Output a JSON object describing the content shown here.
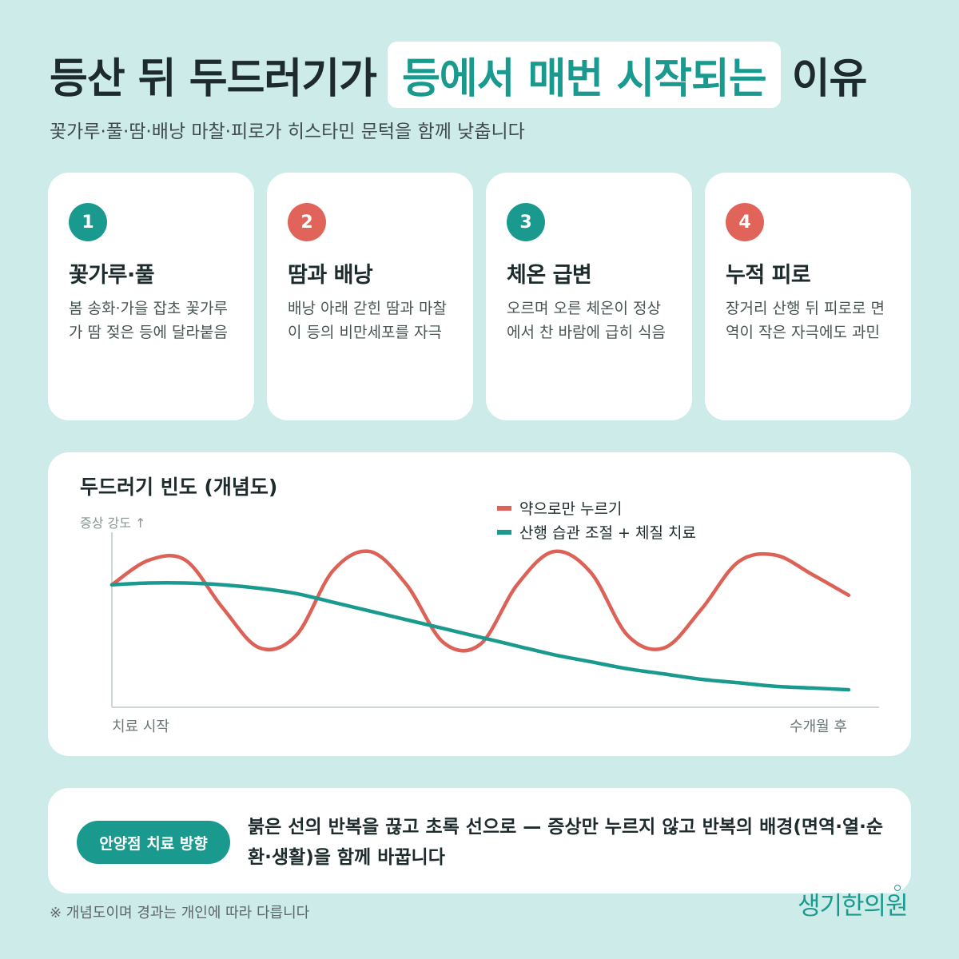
{
  "header": {
    "title_pre": "등산 뒤 두드러기가",
    "title_highlight": "등에서 매번 시작되는",
    "title_post": "이유",
    "subtitle": "꽃가루·풀·땀·배낭 마찰·피로가 히스타민 문턱을 함께 낮춥니다"
  },
  "cards": [
    {
      "number": "1",
      "title": "꽃가루·풀",
      "body": "봄 송화·가을 잡초 꽃가루가 땀 젖은 등에 달라붙음",
      "badge_color": "#1a9a8e"
    },
    {
      "number": "2",
      "title": "땀과 배낭",
      "body": "배낭 아래 갇힌 땀과 마찰이 등의 비만세포를 자극",
      "badge_color": "#e06459"
    },
    {
      "number": "3",
      "title": "체온 급변",
      "body": "오르며 오른 체온이 정상에서 찬 바람에 급히 식음",
      "badge_color": "#1a9a8e"
    },
    {
      "number": "4",
      "title": "누적 피로",
      "body": "장거리 산행 뒤 피로로 면역이 작은 자극에도 과민",
      "badge_color": "#e06459"
    }
  ],
  "chart_data": {
    "type": "line",
    "title": "두드러기 빈도 (개념도)",
    "ylabel": "증상 강도 ↑",
    "xlabel_start": "치료 시작",
    "xlabel_end": "수개월 후",
    "legend_position": "top-right",
    "grid": false,
    "x": [
      0,
      0.05,
      0.1,
      0.15,
      0.2,
      0.25,
      0.3,
      0.35,
      0.4,
      0.45,
      0.5,
      0.55,
      0.6,
      0.65,
      0.7,
      0.75,
      0.8,
      0.85,
      0.9,
      0.95,
      1.0
    ],
    "ylim": [
      0,
      1
    ],
    "series": [
      {
        "name": "약으로만 누르기",
        "color": "#dc6258",
        "values": [
          0.7,
          0.84,
          0.84,
          0.57,
          0.34,
          0.41,
          0.78,
          0.89,
          0.7,
          0.37,
          0.36,
          0.7,
          0.89,
          0.77,
          0.41,
          0.34,
          0.56,
          0.83,
          0.87,
          0.76,
          0.64
        ]
      },
      {
        "name": "산행 습관 조절 + 체질 치료",
        "color": "#1a9a8e",
        "values": [
          0.7,
          0.71,
          0.71,
          0.7,
          0.68,
          0.65,
          0.6,
          0.55,
          0.5,
          0.45,
          0.4,
          0.35,
          0.3,
          0.26,
          0.22,
          0.19,
          0.16,
          0.14,
          0.12,
          0.11,
          0.1
        ]
      }
    ]
  },
  "note": {
    "tag": "안양점 치료 방향",
    "text": "붉은 선의 반복을 끊고 초록 선으로 — 증상만 누르지 않고 반복의 배경(면역·열·순환·생활)을 함께 바꿉니다"
  },
  "footnote": "※ 개념도이며 경과는 개인에 따라 다릅니다",
  "logo": "생기한의원"
}
